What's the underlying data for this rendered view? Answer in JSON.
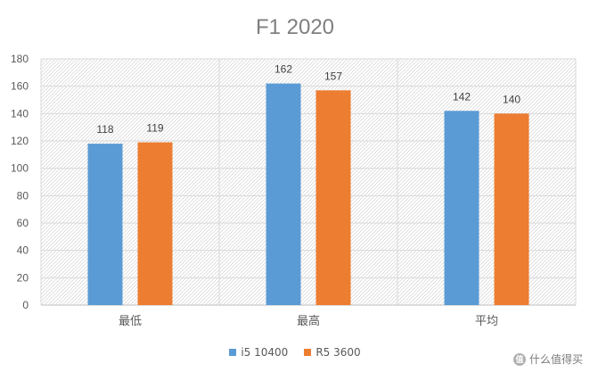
{
  "chart_data": {
    "type": "bar",
    "title": "F1 2020",
    "categories": [
      "最低",
      "最高",
      "平均"
    ],
    "series": [
      {
        "name": "i5 10400",
        "values": [
          118,
          162,
          142
        ],
        "color": "#5b9bd5"
      },
      {
        "name": "R5 3600",
        "values": [
          119,
          157,
          140
        ],
        "color": "#ed7d31"
      }
    ],
    "ylim": [
      0,
      180
    ],
    "yticks": [
      0,
      20,
      40,
      60,
      80,
      100,
      120,
      140,
      160,
      180
    ],
    "grid": true,
    "legend_position": "bottom"
  },
  "watermark": {
    "icon": "值",
    "text": "什么值得买"
  }
}
